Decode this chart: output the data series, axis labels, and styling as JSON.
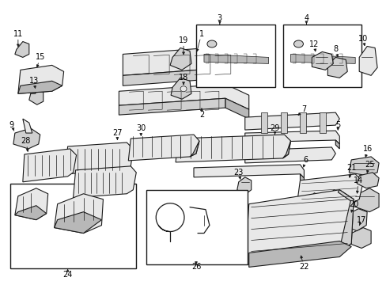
{
  "bg": "#ffffff",
  "lc": "#1a1a1a",
  "fc_light": "#e8e8e8",
  "fc_mid": "#d0d0d0",
  "fc_dark": "#b8b8b8",
  "figsize": [
    4.89,
    3.6
  ],
  "dpi": 100
}
